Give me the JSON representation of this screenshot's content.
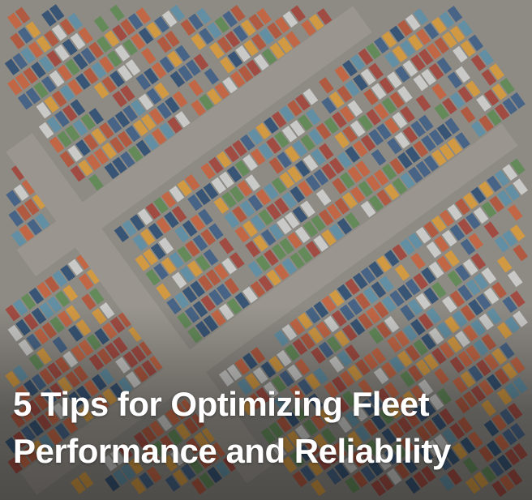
{
  "hero": {
    "image": "aerial view of shipping container port with crossing roads",
    "title_lines": [
      "5 Tips for Optimizing Fleet",
      "Performance and Reliability"
    ]
  },
  "colors": {
    "ground": "#8e8b85",
    "road": "#9a968f",
    "title_text": "#ffffff",
    "containers": [
      "#c8633f",
      "#b4543a",
      "#3f5f86",
      "#2f4f73",
      "#d99a3c",
      "#cfcfcf",
      "#5f8a55",
      "#a3453c",
      "#5d8fa6"
    ]
  }
}
